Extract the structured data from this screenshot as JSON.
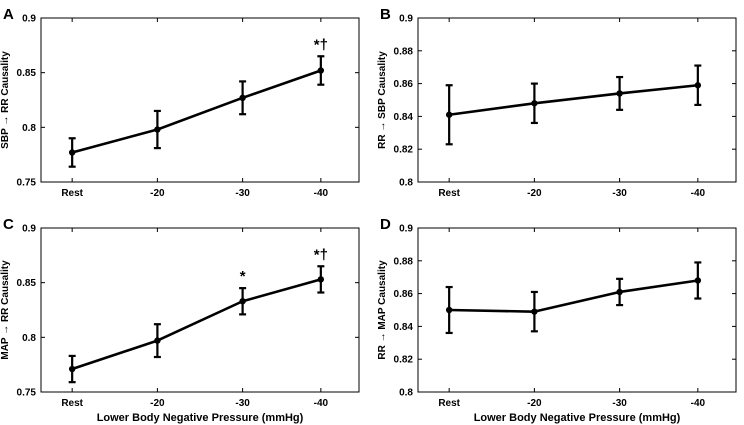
{
  "chart_data": [
    {
      "panel_label": "A",
      "type": "line",
      "categories": [
        "Rest",
        "-20",
        "-30",
        "-40"
      ],
      "values": [
        0.777,
        0.798,
        0.827,
        0.852
      ],
      "errors": [
        0.013,
        0.017,
        0.015,
        0.013
      ],
      "ylabel": "SBP → RR Causality",
      "xlabel": "",
      "ylim": [
        0.75,
        0.9
      ],
      "yticks": [
        "0.75",
        "0.8",
        "0.85",
        "0.9"
      ],
      "annotations": [
        {
          "category_index": 3,
          "text": "*†"
        }
      ]
    },
    {
      "panel_label": "B",
      "type": "line",
      "categories": [
        "Rest",
        "-20",
        "-30",
        "-40"
      ],
      "values": [
        0.841,
        0.848,
        0.854,
        0.859
      ],
      "errors": [
        0.018,
        0.012,
        0.01,
        0.012
      ],
      "ylabel": "RR → SBP Causality",
      "xlabel": "",
      "ylim": [
        0.8,
        0.9
      ],
      "yticks": [
        "0.8",
        "0.82",
        "0.84",
        "0.86",
        "0.88",
        "0.9"
      ],
      "annotations": []
    },
    {
      "panel_label": "C",
      "type": "line",
      "categories": [
        "Rest",
        "-20",
        "-30",
        "-40"
      ],
      "values": [
        0.771,
        0.797,
        0.833,
        0.853
      ],
      "errors": [
        0.012,
        0.015,
        0.012,
        0.012
      ],
      "ylabel": "MAP → RR Causality",
      "xlabel": "Lower Body Negative Pressure (mmHg)",
      "ylim": [
        0.75,
        0.9
      ],
      "yticks": [
        "0.75",
        "0.8",
        "0.85",
        "0.9"
      ],
      "annotations": [
        {
          "category_index": 2,
          "text": "*"
        },
        {
          "category_index": 3,
          "text": "*†"
        }
      ]
    },
    {
      "panel_label": "D",
      "type": "line",
      "categories": [
        "Rest",
        "-20",
        "-30",
        "-40"
      ],
      "values": [
        0.85,
        0.849,
        0.861,
        0.868
      ],
      "errors": [
        0.014,
        0.012,
        0.008,
        0.011
      ],
      "ylabel": "RR → MAP Causality",
      "xlabel": "Lower Body Negative Pressure (mmHg)",
      "ylim": [
        0.8,
        0.9
      ],
      "yticks": [
        "0.8",
        "0.82",
        "0.84",
        "0.86",
        "0.88",
        "0.9"
      ],
      "annotations": []
    }
  ]
}
